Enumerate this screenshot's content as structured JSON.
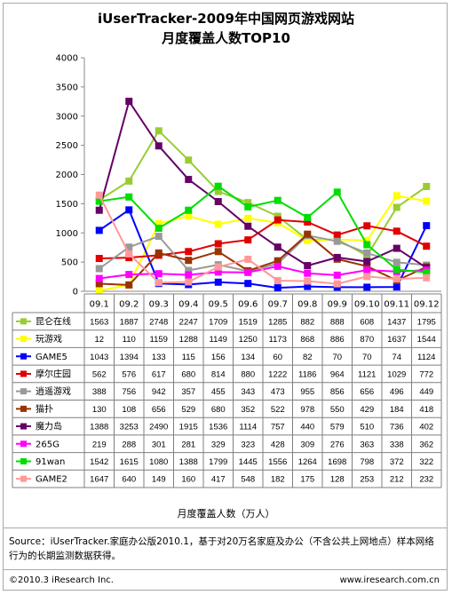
{
  "title_line1": "iUserTracker-2009年中国网页游戏网站",
  "title_line2": "月度覆盖人数TOP10",
  "unit_label": "月度覆盖人数（万人）",
  "source_text": "Source：iUserTracker.家庭办公版2010.1，基于对20万名家庭及办公（不含公共上网地点）样本网络行为的长期监测数据获得。",
  "copyright": "©2010.3 iResearch Inc.",
  "website": "www.iresearch.com.cn",
  "chart_data": {
    "type": "line",
    "categories": [
      "09.1",
      "09.2",
      "09.3",
      "09.4",
      "09.5",
      "09.6",
      "09.7",
      "09.8",
      "09.9",
      "09.10",
      "09.11",
      "09.12"
    ],
    "ylim": [
      0,
      4000
    ],
    "yticks": [
      0,
      500,
      1000,
      1500,
      2000,
      2500,
      3000,
      3500,
      4000
    ],
    "series": [
      {
        "name": "昆仑在线",
        "color": "#99CC33",
        "marker": "square",
        "values": [
          1563,
          1887,
          2748,
          2247,
          1709,
          1519,
          1285,
          882,
          888,
          608,
          1437,
          1795
        ]
      },
      {
        "name": "玩游戏",
        "color": "#FFFF00",
        "marker": "square",
        "values": [
          12,
          110,
          1159,
          1288,
          1149,
          1250,
          1173,
          868,
          886,
          870,
          1637,
          1544
        ]
      },
      {
        "name": "GAME5",
        "color": "#0000FF",
        "marker": "square",
        "values": [
          1043,
          1394,
          133,
          115,
          156,
          134,
          60,
          82,
          70,
          70,
          74,
          1124
        ]
      },
      {
        "name": "摩尔庄园",
        "color": "#E00000",
        "marker": "square",
        "values": [
          562,
          576,
          617,
          680,
          814,
          880,
          1222,
          1186,
          964,
          1121,
          1029,
          772
        ]
      },
      {
        "name": "逍遥游戏",
        "color": "#999999",
        "marker": "square",
        "values": [
          388,
          756,
          942,
          357,
          455,
          343,
          473,
          955,
          856,
          656,
          496,
          449
        ]
      },
      {
        "name": "猫扑",
        "color": "#993300",
        "marker": "square",
        "values": [
          130,
          108,
          656,
          529,
          680,
          352,
          522,
          978,
          550,
          429,
          184,
          418
        ]
      },
      {
        "name": "魔力岛",
        "color": "#660066",
        "marker": "square",
        "values": [
          1388,
          3253,
          2490,
          1915,
          1536,
          1114,
          757,
          440,
          579,
          510,
          736,
          402
        ]
      },
      {
        "name": "265G",
        "color": "#FF00FF",
        "marker": "square",
        "values": [
          219,
          288,
          301,
          281,
          329,
          323,
          428,
          309,
          276,
          363,
          338,
          362
        ]
      },
      {
        "name": "91wan",
        "color": "#00DD00",
        "marker": "square",
        "values": [
          1542,
          1615,
          1080,
          1388,
          1799,
          1445,
          1556,
          1264,
          1698,
          798,
          372,
          322
        ]
      },
      {
        "name": "GAME2",
        "color": "#FF9999",
        "marker": "square",
        "values": [
          1647,
          640,
          149,
          160,
          417,
          548,
          182,
          175,
          128,
          253,
          212,
          232
        ]
      }
    ]
  }
}
